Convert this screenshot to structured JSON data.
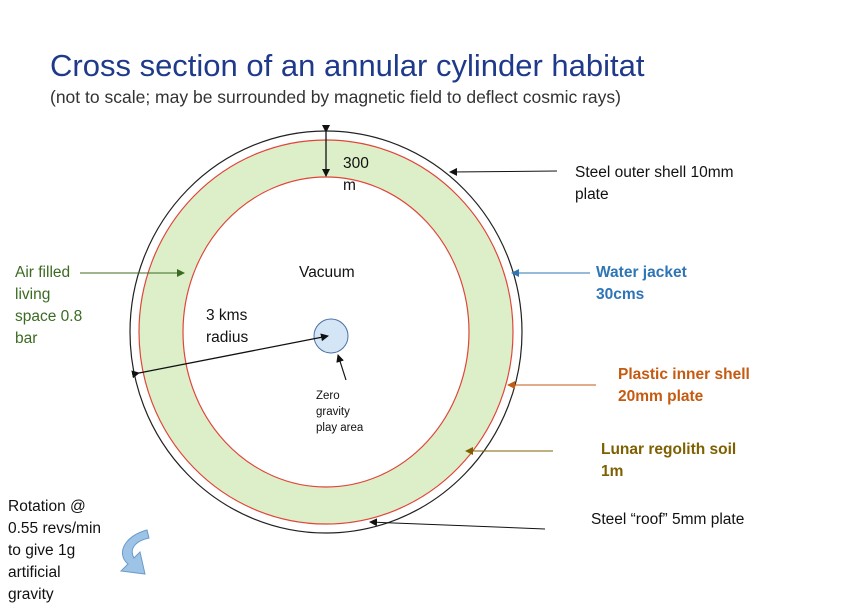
{
  "title": "Cross section of an annular cylinder habitat",
  "subtitle": "(not to scale; may be surrounded by magnetic field to deflect cosmic rays)",
  "labels": {
    "thickness": [
      "300",
      "m"
    ],
    "vacuum": "Vacuum",
    "radius": [
      "3 kms",
      "radius"
    ],
    "zero_gravity": [
      "Zero",
      "gravity",
      "play area"
    ],
    "air": [
      "Air filled",
      "living",
      "space 0.8",
      "bar"
    ],
    "steel_outer": [
      "Steel outer shell 10mm",
      "plate"
    ],
    "water_jacket": [
      "Water jacket",
      "30cms"
    ],
    "plastic_inner": [
      "Plastic inner shell",
      "20mm plate"
    ],
    "lunar_regolith": [
      "Lunar regolith soil",
      "1m"
    ],
    "steel_roof": "Steel “roof” 5mm plate",
    "rotation": [
      "Rotation @",
      "0.55 revs/min",
      "to give 1g",
      "artificial",
      "gravity"
    ]
  },
  "colors": {
    "title": "#1f3a8a",
    "living_space_fill": "#dcefc9",
    "red_lines": "#e0453a",
    "air_label": "#3b6b22",
    "water_jacket_label": "#2e75b6",
    "plastic_label": "#c55a11",
    "regolith_label": "#7f6000",
    "zero_gravity_fill": "#d4e6f6",
    "rotation_arrow": "#9dc3e6"
  }
}
